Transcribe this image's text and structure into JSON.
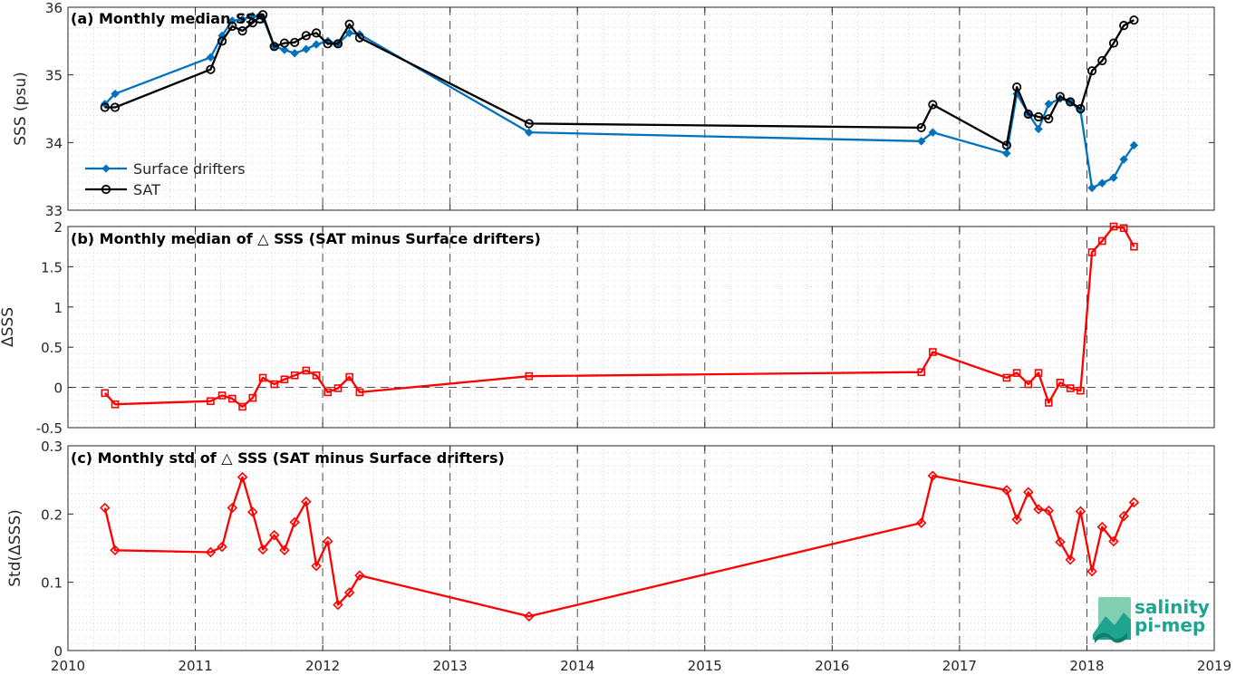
{
  "chart_data": [
    {
      "type": "line",
      "title": "(a) Monthly median SSS",
      "xlabel": "",
      "ylabel": "SSS (psu)",
      "xlim": [
        2010,
        2019
      ],
      "ylim": [
        33,
        36
      ],
      "yticks": [
        33,
        34,
        35,
        36
      ],
      "grid": true,
      "legend": "bottom-left",
      "series": [
        {
          "name": "Surface drifters",
          "color": "#0072BD",
          "marker": "diamond",
          "x": [
            2010.29,
            2010.37,
            2011.12,
            2011.21,
            2011.29,
            2011.37,
            2011.45,
            2011.53,
            2011.62,
            2011.7,
            2011.78,
            2011.87,
            2011.95,
            2012.04,
            2012.12,
            2012.21,
            2012.29,
            2013.62,
            2016.7,
            2016.79,
            2017.37,
            2017.45,
            2017.54,
            2017.62,
            2017.7,
            2017.79,
            2017.87,
            2017.95,
            2018.04,
            2018.12,
            2018.21,
            2018.29,
            2018.37
          ],
          "y": [
            34.57,
            34.72,
            35.26,
            35.58,
            35.8,
            35.82,
            35.87,
            35.85,
            35.42,
            35.37,
            35.32,
            35.38,
            35.45,
            35.5,
            35.46,
            35.62,
            35.6,
            34.15,
            34.02,
            34.15,
            33.84,
            34.72,
            34.43,
            34.2,
            34.57,
            34.65,
            34.6,
            34.47,
            33.33,
            33.4,
            33.48,
            33.75,
            33.96
          ]
        },
        {
          "name": "SAT",
          "color": "#000000",
          "marker": "circle",
          "x": [
            2010.29,
            2010.37,
            2011.12,
            2011.21,
            2011.29,
            2011.37,
            2011.45,
            2011.53,
            2011.62,
            2011.7,
            2011.78,
            2011.87,
            2011.95,
            2012.04,
            2012.12,
            2012.21,
            2012.29,
            2013.62,
            2016.7,
            2016.79,
            2017.37,
            2017.45,
            2017.54,
            2017.62,
            2017.7,
            2017.79,
            2017.87,
            2017.95,
            2018.04,
            2018.12,
            2018.21,
            2018.29,
            2018.37
          ],
          "y": [
            34.52,
            34.52,
            35.08,
            35.5,
            35.72,
            35.65,
            35.77,
            35.89,
            35.42,
            35.47,
            35.48,
            35.58,
            35.62,
            35.46,
            35.46,
            35.75,
            35.55,
            34.28,
            34.22,
            34.56,
            33.96,
            34.82,
            34.42,
            34.38,
            34.35,
            34.68,
            34.6,
            34.5,
            35.06,
            35.21,
            35.47,
            35.73,
            35.81
          ]
        }
      ]
    },
    {
      "type": "line",
      "title": "(b) Monthly median of △ SSS (SAT minus Surface drifters)",
      "xlabel": "",
      "ylabel": "ΔSSS",
      "xlim": [
        2010,
        2019
      ],
      "ylim": [
        -0.5,
        2
      ],
      "yticks": [
        -0.5,
        0,
        0.5,
        1,
        1.5,
        2
      ],
      "yticklabels": [
        "-0.5",
        "0",
        "0.5",
        "1",
        "1.5",
        "2"
      ],
      "grid": true,
      "zero_line": true,
      "series": [
        {
          "color": "#FF0000",
          "marker": "square",
          "x": [
            2010.29,
            2010.37,
            2011.12,
            2011.21,
            2011.29,
            2011.37,
            2011.45,
            2011.53,
            2011.62,
            2011.7,
            2011.78,
            2011.87,
            2011.95,
            2012.04,
            2012.12,
            2012.21,
            2012.29,
            2013.62,
            2016.7,
            2016.79,
            2017.37,
            2017.45,
            2017.54,
            2017.62,
            2017.7,
            2017.79,
            2017.87,
            2017.95,
            2018.04,
            2018.12,
            2018.21,
            2018.29,
            2018.37
          ],
          "y": [
            -0.07,
            -0.21,
            -0.17,
            -0.1,
            -0.14,
            -0.24,
            -0.13,
            0.12,
            0.04,
            0.1,
            0.15,
            0.21,
            0.15,
            -0.06,
            -0.01,
            0.13,
            -0.06,
            0.14,
            0.19,
            0.44,
            0.12,
            0.18,
            0.04,
            0.18,
            -0.19,
            0.06,
            -0.01,
            -0.04,
            1.68,
            1.82,
            2.0,
            1.98,
            1.75
          ]
        }
      ]
    },
    {
      "type": "line",
      "title": "(c) Monthly std of △ SSS (SAT minus Surface drifters)",
      "xlabel": "",
      "ylabel": "Std(ΔSSS)",
      "xlim": [
        2010,
        2019
      ],
      "ylim": [
        0,
        0.3
      ],
      "yticks": [
        0,
        0.1,
        0.2,
        0.3
      ],
      "yticklabels": [
        "0",
        "0.1",
        "0.2",
        "0.3"
      ],
      "xticks": [
        2010,
        2011,
        2012,
        2013,
        2014,
        2015,
        2016,
        2017,
        2018,
        2019
      ],
      "grid": true,
      "series": [
        {
          "color": "#FF0000",
          "marker": "diamond",
          "x": [
            2010.29,
            2010.37,
            2011.12,
            2011.21,
            2011.29,
            2011.37,
            2011.45,
            2011.53,
            2011.62,
            2011.7,
            2011.78,
            2011.87,
            2011.95,
            2012.04,
            2012.12,
            2012.21,
            2012.29,
            2013.62,
            2016.7,
            2016.79,
            2017.37,
            2017.45,
            2017.54,
            2017.62,
            2017.7,
            2017.79,
            2017.87,
            2017.95,
            2018.04,
            2018.12,
            2018.21,
            2018.29,
            2018.37
          ],
          "y": [
            0.209,
            0.147,
            0.144,
            0.152,
            0.209,
            0.254,
            0.203,
            0.148,
            0.169,
            0.147,
            0.188,
            0.218,
            0.124,
            0.16,
            0.067,
            0.085,
            0.11,
            0.05,
            0.187,
            0.256,
            0.235,
            0.192,
            0.232,
            0.207,
            0.205,
            0.159,
            0.133,
            0.204,
            0.116,
            0.181,
            0.16,
            0.197,
            0.217
          ]
        }
      ]
    }
  ],
  "logo": {
    "line1": "salinity",
    "line2": "pi-mep",
    "color": "#1fa58f"
  }
}
